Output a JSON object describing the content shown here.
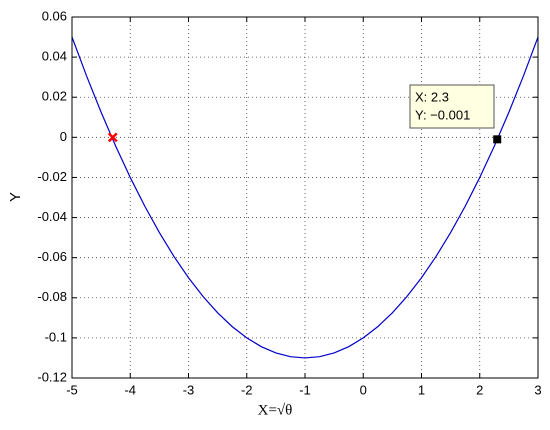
{
  "chart_data": {
    "type": "line",
    "xlabel": "X=√θ",
    "ylabel": "Y",
    "x": [
      -5,
      -4.75,
      -4.5,
      -4.25,
      -4,
      -3.75,
      -3.5,
      -3.25,
      -3,
      -2.75,
      -2.5,
      -2.25,
      -2,
      -1.75,
      -1.5,
      -1.25,
      -1,
      -0.75,
      -0.5,
      -0.25,
      0,
      0.25,
      0.5,
      0.75,
      1,
      1.25,
      1.5,
      1.75,
      2,
      2.25,
      2.5,
      2.75,
      3
    ],
    "series": [
      {
        "color": "#0000cc",
        "values": [
          0.05,
          0.030625,
          0.0125,
          -0.004375,
          -0.02,
          -0.034375,
          -0.0475,
          -0.059375,
          -0.07,
          -0.079375,
          -0.0875,
          -0.094375,
          -0.1,
          -0.104375,
          -0.1075,
          -0.109375,
          -0.11,
          -0.109375,
          -0.1075,
          -0.104375,
          -0.1,
          -0.094375,
          -0.0875,
          -0.079375,
          -0.07,
          -0.059375,
          -0.0475,
          -0.034375,
          -0.02,
          -0.004375,
          0.0125,
          0.030625,
          0.05
        ]
      }
    ],
    "markers": [
      {
        "color": "#ff0000",
        "shape": "x",
        "x": [
          -4.3
        ],
        "values": [
          0
        ]
      },
      {
        "color": "#000000",
        "shape": "square",
        "x": [
          2.3
        ],
        "values": [
          -0.001
        ]
      }
    ],
    "datatip": {
      "lines": [
        "X: 2.3",
        "Y: −0.001"
      ]
    },
    "xlim": [
      -5,
      3
    ],
    "xticks": [
      -5,
      -4,
      -3,
      -2,
      -1,
      0,
      1,
      2,
      3
    ],
    "ylim": [
      -0.12,
      0.06
    ],
    "yticks": [
      -0.12,
      -0.1,
      -0.08,
      -0.06,
      -0.04,
      -0.02,
      0,
      0.02,
      0.04,
      0.06
    ],
    "grid": true
  }
}
